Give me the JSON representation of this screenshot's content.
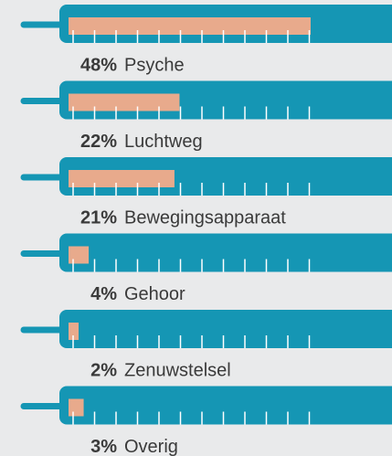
{
  "chart_data": {
    "type": "thermometer-bar",
    "categories": [
      "Psyche",
      "Luchtweg",
      "Bewegingsapparaat",
      "Gehoor",
      "Zenuwstelsel",
      "Overig"
    ],
    "values": [
      48,
      22,
      21,
      4,
      2,
      3
    ],
    "value_labels": [
      "48%",
      "22%",
      "21%",
      "4%",
      "2%",
      "3%"
    ],
    "color": "#e8aa8c",
    "tube_color": "#1596b4"
  }
}
